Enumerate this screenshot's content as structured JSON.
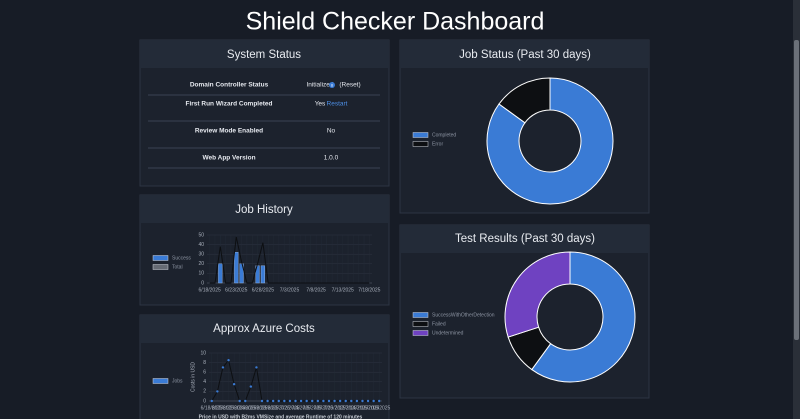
{
  "title": "Shield Checker Dashboard",
  "system_status": {
    "title": "System Status",
    "rows": [
      {
        "label": "Domain Controller Status",
        "value": "Initialized",
        "action": "(Reset)"
      },
      {
        "label": "First Run Wizard Completed",
        "value": "Yes",
        "action": "Restart"
      },
      {
        "label": "Review Mode Enabled",
        "value": "No"
      },
      {
        "label": "Web App Version",
        "value": "1.0.0"
      }
    ]
  },
  "chart_data": [
    {
      "type": "bar",
      "title": "Job History",
      "categories": [
        "6/18/2025",
        null,
        null,
        null,
        null,
        "6/23/2025",
        null,
        null,
        null,
        null,
        "6/28/2025",
        null,
        null,
        null,
        null,
        "7/3/2025",
        null,
        null,
        null,
        null,
        "7/8/2025",
        null,
        null,
        null,
        null,
        "7/13/2025",
        null,
        null,
        null,
        null,
        "7/18/2025"
      ],
      "series": [
        {
          "name": "Success",
          "type": "bar",
          "color": "#3a7bd5",
          "values": [
            0,
            0,
            20,
            0,
            0,
            32,
            20,
            0,
            0,
            18,
            18,
            0,
            0,
            0,
            0,
            0,
            0,
            0,
            0,
            0,
            0,
            0,
            0,
            0,
            0,
            0,
            0,
            0,
            0,
            0,
            0
          ]
        },
        {
          "name": "Total",
          "type": "line",
          "color": "#0d0f12",
          "values": [
            0,
            0,
            38,
            0,
            0,
            48,
            22,
            0,
            0,
            20,
            42,
            0,
            0,
            0,
            0,
            0,
            0,
            0,
            0,
            0,
            0,
            0,
            0,
            0,
            0,
            0,
            0,
            0,
            0,
            0,
            0
          ]
        }
      ],
      "ylim": [
        0,
        50
      ],
      "yticks": [
        0,
        10,
        20,
        30,
        40,
        50
      ],
      "grid": true
    },
    {
      "type": "line",
      "title": "Approx Azure Costs",
      "ylabel": "Costs in USD",
      "note": "Price in USD with B2ms VMSize and average Runtime of 120 minutes",
      "categories": [
        "6/18/2025",
        null,
        "6/20/2025",
        null,
        "6/22/2025",
        null,
        "6/24/2025",
        null,
        "6/26/2025",
        null,
        "6/28/2025",
        null,
        "6/30/2025",
        null,
        "7/2/2025",
        null,
        "7/4/2025",
        null,
        "7/6/2025",
        null,
        "7/8/2025",
        null,
        "7/10/2025",
        null,
        "7/12/2025",
        null,
        "7/14/2025",
        null,
        "7/16/2025",
        null,
        "7/18/2025"
      ],
      "series": [
        {
          "name": "Jobs",
          "color": "#3a7bd5",
          "values": [
            0,
            2,
            7,
            8.5,
            3.5,
            0,
            0,
            3,
            7,
            0,
            0,
            0,
            0,
            0,
            0,
            0,
            0,
            0,
            0,
            0,
            0,
            0,
            0,
            0,
            0,
            0,
            0,
            0,
            0,
            0,
            0
          ]
        }
      ],
      "ylim": [
        0,
        10
      ],
      "yticks": [
        0,
        2,
        4,
        6,
        8,
        10
      ],
      "grid": true
    },
    {
      "type": "doughnut",
      "title": "Job Status (Past 30 days)",
      "categories": [
        "Completed",
        "Error"
      ],
      "values": [
        85,
        15
      ],
      "colors": [
        "#3a7bd5",
        "#0d0f12"
      ]
    },
    {
      "type": "doughnut",
      "title": "Test Results (Past 30 days)",
      "categories": [
        "SuccessWithOtherDetection",
        "Failed",
        "Undetermined"
      ],
      "values": [
        60,
        10,
        30
      ],
      "colors": [
        "#3a7bd5",
        "#0d0f12",
        "#6f42c1"
      ]
    }
  ]
}
